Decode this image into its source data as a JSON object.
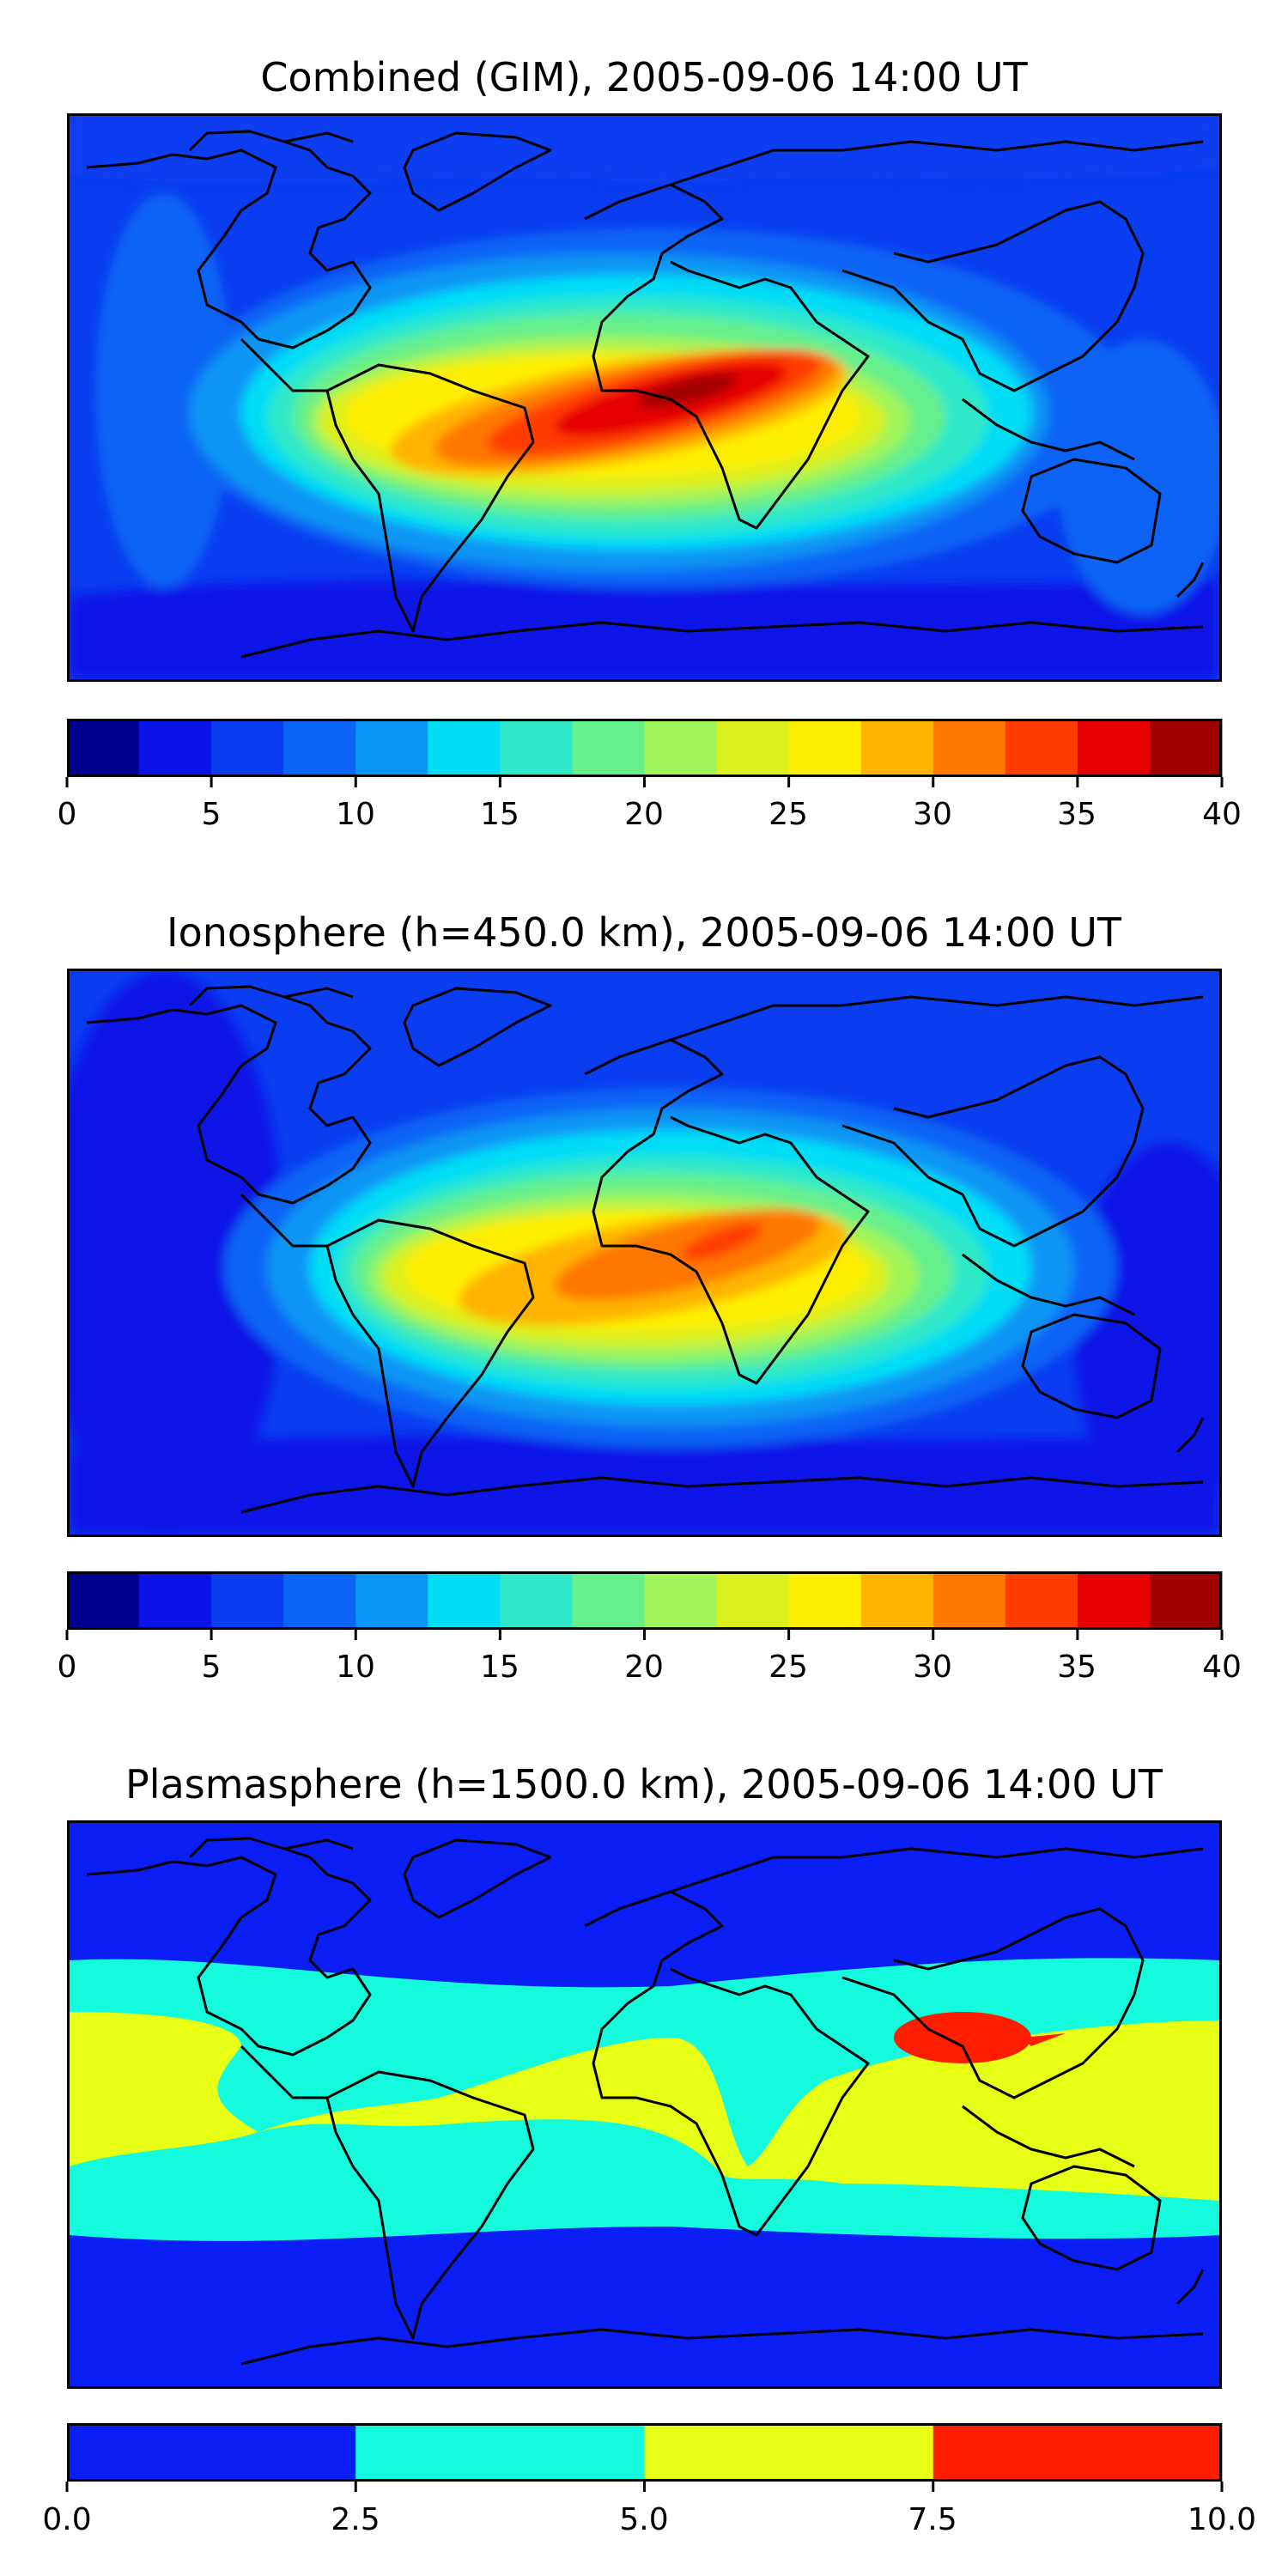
{
  "chart_data": [
    {
      "type": "heatmap",
      "title": "Combined (GIM), 2005-09-06 14:00 UT",
      "colorbar": {
        "min": 0,
        "max": 40,
        "step": 2.5,
        "tick_labels": [
          "0",
          "5",
          "10",
          "15",
          "20",
          "25",
          "30",
          "35",
          "40"
        ],
        "colors": [
          "#00008f",
          "#0a14e6",
          "#0a3cf0",
          "#0a64f5",
          "#0a96f5",
          "#00ddf5",
          "#2ee8c8",
          "#66f08c",
          "#a0f55a",
          "#dcf01e",
          "#ffee00",
          "#ffb400",
          "#ff7800",
          "#ff3c00",
          "#e60000",
          "#a00000"
        ]
      },
      "peak_region": "equatorial Africa / South Atlantic",
      "peak_value_approx": 40
    },
    {
      "type": "heatmap",
      "title": "Ionosphere  (h=450.0 km), 2005-09-06 14:00 UT",
      "colorbar": {
        "min": 0,
        "max": 40,
        "step": 2.5,
        "tick_labels": [
          "0",
          "5",
          "10",
          "15",
          "20",
          "25",
          "30",
          "35",
          "40"
        ],
        "colors": [
          "#00008f",
          "#0a14e6",
          "#0a3cf0",
          "#0a64f5",
          "#0a96f5",
          "#00ddf5",
          "#2ee8c8",
          "#66f08c",
          "#a0f55a",
          "#dcf01e",
          "#ffee00",
          "#ffb400",
          "#ff7800",
          "#ff3c00",
          "#e60000",
          "#a00000"
        ]
      },
      "peak_region": "central Africa",
      "peak_value_approx": 32.5
    },
    {
      "type": "heatmap",
      "title": "Plasmasphere (h=1500.0 km), 2005-09-06 14:00 UT",
      "colorbar": {
        "min": 0.0,
        "max": 10.0,
        "step": 2.5,
        "tick_labels": [
          "0.0",
          "2.5",
          "5.0",
          "7.5",
          "10.0"
        ],
        "colors": [
          "#0a1ef5",
          "#14fadc",
          "#e6ff14",
          "#ff1e00"
        ]
      },
      "peak_region": "southern China",
      "peak_value_approx": 10.0
    }
  ]
}
